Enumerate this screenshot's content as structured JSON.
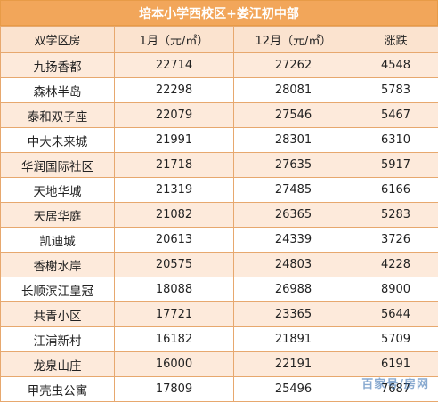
{
  "title": "培本小学西校区+娄江初中部",
  "headers": [
    "双学区房",
    "1月（元/㎡）",
    "12月（元/㎡）",
    "涨跌"
  ],
  "rows": [
    {
      "name": "九扬香都",
      "jan": "22714",
      "dec": "27262",
      "change": "4548"
    },
    {
      "name": "森林半岛",
      "jan": "22298",
      "dec": "28081",
      "change": "5783"
    },
    {
      "name": "泰和双子座",
      "jan": "22079",
      "dec": "27546",
      "change": "5467"
    },
    {
      "name": "中大未来城",
      "jan": "21991",
      "dec": "28301",
      "change": "6310"
    },
    {
      "name": "华润国际社区",
      "jan": "21718",
      "dec": "27635",
      "change": "5917"
    },
    {
      "name": "天地华城",
      "jan": "21319",
      "dec": "27485",
      "change": "6166"
    },
    {
      "name": "天居华庭",
      "jan": "21082",
      "dec": "26365",
      "change": "5283"
    },
    {
      "name": "凯迪城",
      "jan": "20613",
      "dec": "24339",
      "change": "3726"
    },
    {
      "name": "香榭水岸",
      "jan": "20575",
      "dec": "24803",
      "change": "4228"
    },
    {
      "name": "长顺滨江皇冠",
      "jan": "18088",
      "dec": "26988",
      "change": "8900"
    },
    {
      "name": "共青小区",
      "jan": "17721",
      "dec": "23365",
      "change": "5644"
    },
    {
      "name": "江浦新村",
      "jan": "16182",
      "dec": "21891",
      "change": "5709"
    },
    {
      "name": "龙泉山庄",
      "jan": "16000",
      "dec": "22191",
      "change": "6191"
    },
    {
      "name": "甲壳虫公寓",
      "jan": "17809",
      "dec": "25496",
      "change": "7687"
    }
  ],
  "watermark": "百家号/房网"
}
